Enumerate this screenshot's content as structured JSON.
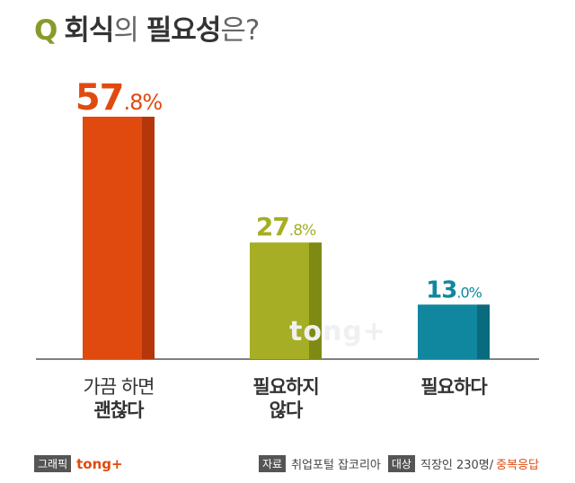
{
  "title": {
    "q": "Q",
    "part1": "회식",
    "part2": "의 ",
    "part3": "필요성",
    "part4": "은?"
  },
  "watermark": "tong+",
  "footer": {
    "graphic_tag": "그래픽",
    "brand": "tong+",
    "source_tag": "자료",
    "source_text": "취업포털 잡코리아",
    "target_tag": "대상",
    "target_text": "직장인 230명/",
    "multi_text": "중복응답"
  },
  "colors": {
    "bar1": "#e04a0f",
    "bar1_side": "#b5360a",
    "bar2": "#a5ae24",
    "bar2_side": "#7f8a15",
    "bar3": "#11879f",
    "bar3_side": "#0a6a7e"
  },
  "chart_data": {
    "type": "bar",
    "categories": [
      [
        "가끔 하면",
        "괜찮다"
      ],
      [
        "필요하지",
        "않다"
      ],
      [
        "필요하다"
      ]
    ],
    "values": [
      57.8,
      27.8,
      13.0
    ],
    "value_labels": [
      {
        "main": "57",
        "decimal": ".8%"
      },
      {
        "main": "27",
        "decimal": ".8%"
      },
      {
        "main": "13",
        "decimal": ".0%"
      }
    ],
    "ylim": [
      0,
      57.8
    ]
  }
}
